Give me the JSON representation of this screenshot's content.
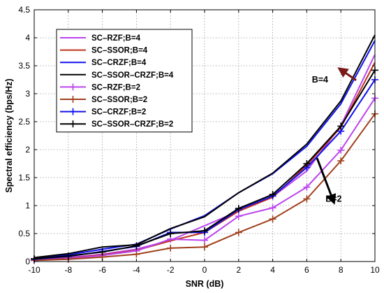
{
  "chart_data": {
    "type": "line",
    "xlabel": "SNR (dB)",
    "ylabel": "Spectral efficiency (bps/Hz)",
    "xlim": [
      -10,
      10
    ],
    "ylim": [
      0,
      4.5
    ],
    "x_ticks": [
      -10,
      -8,
      -6,
      -4,
      -2,
      0,
      2,
      4,
      6,
      8,
      10
    ],
    "y_ticks": [
      0,
      0.5,
      1,
      1.5,
      2,
      2.5,
      3,
      3.5,
      4,
      4.5
    ],
    "y_tick_labels": [
      "0",
      "0.5",
      "1",
      "1.5",
      "2",
      "2.5",
      "3",
      "3.5",
      "4",
      "4.5"
    ],
    "grid": "dotted",
    "legend_position": "top-left",
    "x": [
      -10,
      -8,
      -6,
      -4,
      -2,
      0,
      2,
      4,
      6,
      8,
      10
    ],
    "series": [
      {
        "name": "SC–RZF;B=4",
        "color": "#bb44ee",
        "marker": "none",
        "values": [
          0.04,
          0.07,
          0.13,
          0.22,
          0.38,
          0.64,
          0.9,
          1.16,
          1.62,
          2.43,
          3.7
        ]
      },
      {
        "name": "SC–SSOR;B=4",
        "color": "#c0301c",
        "marker": "none",
        "values": [
          0.03,
          0.06,
          0.12,
          0.2,
          0.37,
          0.52,
          0.9,
          1.15,
          1.72,
          2.4,
          3.56
        ]
      },
      {
        "name": "SC–CRZF;B=4",
        "color": "#1111ee",
        "marker": "none",
        "values": [
          0.06,
          0.12,
          0.22,
          0.31,
          0.58,
          0.82,
          1.23,
          1.57,
          2.06,
          2.82,
          3.95
        ]
      },
      {
        "name": "SC–SSOR–CRZF;B=4",
        "color": "#000000",
        "marker": "none",
        "values": [
          0.07,
          0.14,
          0.26,
          0.3,
          0.59,
          0.8,
          1.23,
          1.58,
          2.1,
          2.87,
          4.05
        ]
      },
      {
        "name": "SC–RZF;B=2",
        "color": "#bb44ee",
        "marker": "plus",
        "values": [
          0.02,
          0.05,
          0.11,
          0.19,
          0.4,
          0.38,
          0.81,
          0.96,
          1.33,
          1.99,
          2.92
        ]
      },
      {
        "name": "SC–SSOR;B=2",
        "color": "#a0401c",
        "marker": "plus",
        "values": [
          0.02,
          0.04,
          0.08,
          0.13,
          0.24,
          0.26,
          0.52,
          0.76,
          1.12,
          1.8,
          2.64
        ]
      },
      {
        "name": "SC–CRZF;B=2",
        "color": "#1111ee",
        "marker": "plus",
        "values": [
          0.04,
          0.09,
          0.18,
          0.27,
          0.52,
          0.52,
          0.93,
          1.17,
          1.68,
          2.33,
          3.25
        ]
      },
      {
        "name": "SC–SSOR–CRZF;B=2",
        "color": "#000000",
        "marker": "plus",
        "values": [
          0.05,
          0.1,
          0.17,
          0.28,
          0.5,
          0.55,
          0.95,
          1.2,
          1.75,
          2.42,
          3.42
        ]
      }
    ],
    "annotations": [
      {
        "text": "B=4",
        "color": "#7a1a1a",
        "arrow_from": [
          8.9,
          3.24
        ],
        "arrow_to": [
          7.9,
          3.45
        ],
        "text_at": [
          6.3,
          3.2
        ]
      },
      {
        "text": "B=2",
        "color": "#000000",
        "arrow_from": [
          6.6,
          1.85
        ],
        "arrow_to": [
          7.6,
          1.05
        ],
        "text_at": [
          7.1,
          1.07
        ]
      }
    ]
  }
}
